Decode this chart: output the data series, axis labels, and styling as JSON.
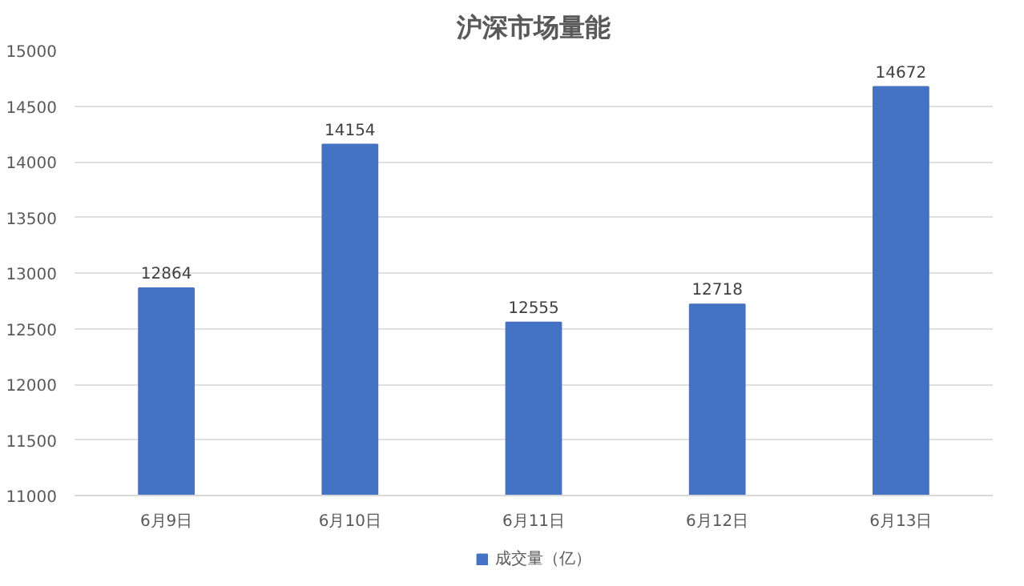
{
  "chart_data": {
    "type": "bar",
    "title": "沪深市场量能",
    "categories": [
      "6月9日",
      "6月10日",
      "6月11日",
      "6月12日",
      "6月13日"
    ],
    "series": [
      {
        "name": "成交量（亿）",
        "color": "#4472c4",
        "values": [
          12864,
          14154,
          12555,
          12718,
          14672
        ]
      }
    ],
    "ylim": [
      11000,
      15000
    ],
    "yticks": [
      11000,
      11500,
      12000,
      12500,
      13000,
      13500,
      14000,
      14500,
      15000
    ],
    "grid": "y",
    "legend": "bottom",
    "data_labels": true
  }
}
